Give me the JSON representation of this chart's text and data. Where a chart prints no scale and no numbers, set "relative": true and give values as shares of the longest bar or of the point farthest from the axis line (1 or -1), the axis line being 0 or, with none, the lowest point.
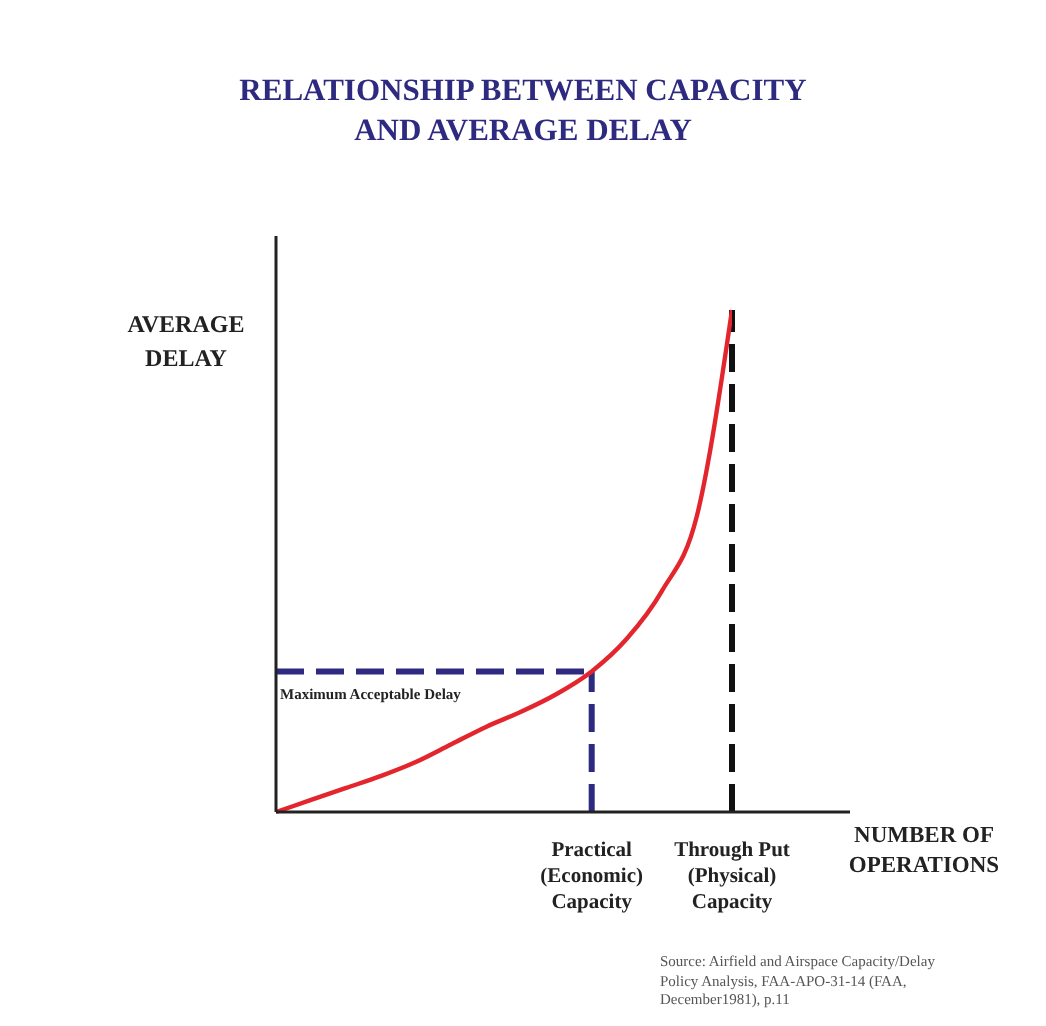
{
  "chart_data": {
    "type": "line",
    "relative": true,
    "title": "RELATIONSHIP BETWEEN CAPACITY\nAND AVERAGE DELAY",
    "xlabel": "NUMBER OF\nOPERATIONS",
    "ylabel": "AVERAGE\nDELAY",
    "categories": [
      null,
      null,
      null,
      null,
      null,
      null,
      null,
      null,
      null,
      "Practical\n(Economic)\nCapacity",
      null,
      null,
      null,
      "Through Put\n(Physical)\nCapacity"
    ],
    "series": [
      {
        "color": "#e3262d",
        "values": [
          0,
          0.024,
          0.048,
          0.072,
          0.1,
          0.135,
          0.17,
          0.2,
          0.235,
          0.28,
          0.345,
          0.44,
          0.59,
          1
        ]
      }
    ],
    "ref_lines": [
      {
        "axis": "y",
        "value": 0.28,
        "label": "Maximum Acceptable Delay",
        "color": "#2e2a80",
        "line_style": "dashed"
      },
      {
        "axis": "x",
        "value": "Practical\n(Economic)\nCapacity",
        "color": "#2e2a80",
        "line_style": "dashed"
      },
      {
        "axis": "x",
        "value": "Through Put\n(Physical)\nCapacity",
        "color": "#111111",
        "line_style": "dashed"
      }
    ],
    "annotations": [
      "Source:  Airfield and Airspace Capacity/Delay\nPolicy Analysis, FAA-APO-31-14 (FAA,\nDecember1981), p.11"
    ],
    "grid": false,
    "legend": false,
    "marker": "none",
    "line_style": "solid"
  }
}
